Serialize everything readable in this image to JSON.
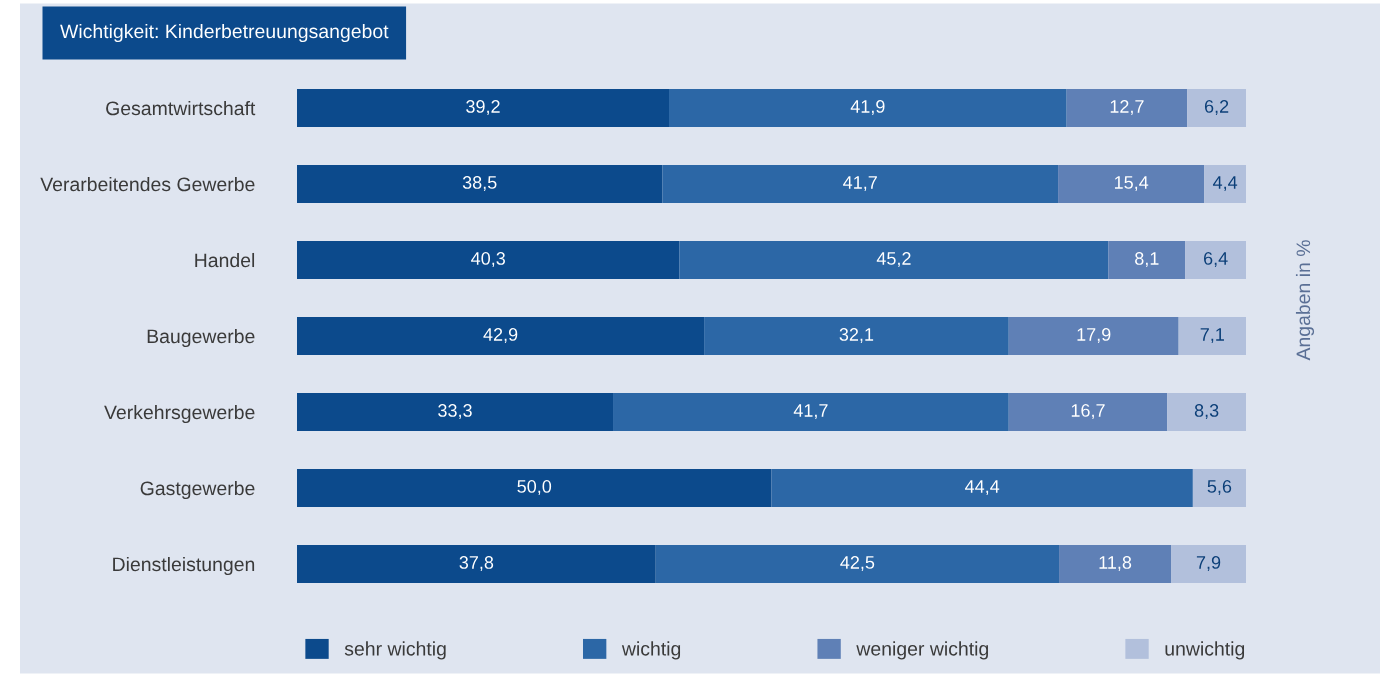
{
  "chart_data": {
    "type": "bar",
    "orientation": "horizontal",
    "stacked": true,
    "title": "Wichtigkeit: Kinderbetreuungsangebot",
    "categories": [
      "Gesamtwirtschaft",
      "Verarbeitendes Gewerbe",
      "Handel",
      "Baugewerbe",
      "Verkehrsgewerbe",
      "Gastgewerbe",
      "Dienstleistungen"
    ],
    "series": [
      {
        "name": "sehr wichtig",
        "color": "#0c4a8c",
        "values": [
          39.2,
          38.5,
          40.3,
          42.9,
          33.3,
          50.0,
          37.8
        ],
        "value_labels": [
          "39,2",
          "38,5",
          "40,3",
          "42,9",
          "33,3",
          "50,0",
          "37,8"
        ]
      },
      {
        "name": "wichtig",
        "color": "#2c67a6",
        "values": [
          41.9,
          41.7,
          45.2,
          32.1,
          41.7,
          44.4,
          42.5
        ],
        "value_labels": [
          "41,9",
          "41,7",
          "45,2",
          "32,1",
          "41,7",
          "44,4",
          "42,5"
        ]
      },
      {
        "name": "weniger wichtig",
        "color": "#5f80b6",
        "values": [
          12.7,
          15.4,
          8.1,
          17.9,
          16.7,
          null,
          11.8
        ],
        "value_labels": [
          "12,7",
          "15,4",
          "8,1",
          "17,9",
          "16,7",
          null,
          "11,8"
        ]
      },
      {
        "name": "unwichtig",
        "color": "#b2c0dc",
        "values": [
          6.2,
          4.4,
          6.4,
          7.1,
          8.3,
          5.6,
          7.9
        ],
        "value_labels": [
          "6,2",
          "4,4",
          "6,4",
          "7,1",
          "8,3",
          "5,6",
          "7,9"
        ]
      }
    ],
    "annotations": [
      "Angaben in %"
    ],
    "legend": "bottom",
    "grid": false
  }
}
